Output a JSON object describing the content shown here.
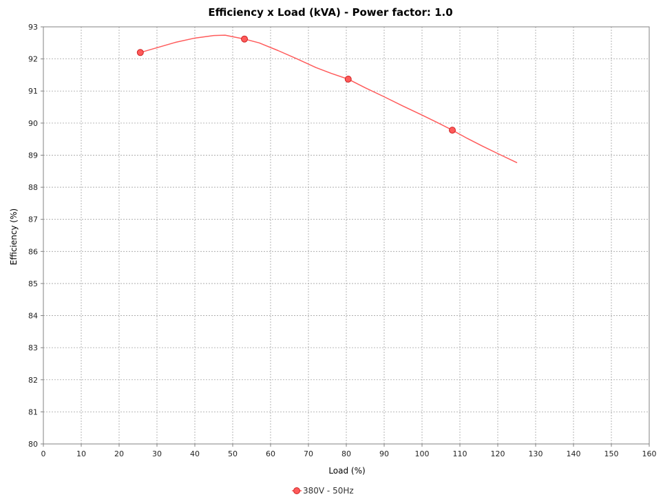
{
  "chart_data": {
    "type": "line",
    "title": "Efficiency x Load (kVA) - Power factor: 1.0",
    "xlabel": "Load (%)",
    "ylabel": "Efficiency (%)",
    "xlim": [
      0,
      160
    ],
    "ylim": [
      80,
      93
    ],
    "x_ticks": [
      0,
      10,
      20,
      30,
      40,
      50,
      60,
      70,
      80,
      90,
      100,
      110,
      120,
      130,
      140,
      150,
      160
    ],
    "y_ticks": [
      80,
      81,
      82,
      83,
      84,
      85,
      86,
      87,
      88,
      89,
      90,
      91,
      92,
      93
    ],
    "grid": true,
    "legend_position": "bottom-center",
    "series": [
      {
        "name": "380V - 50Hz",
        "color": "#ff5a5a",
        "marker": "circle",
        "points": [
          {
            "x": 25.6,
            "y": 92.2
          },
          {
            "x": 53.1,
            "y": 92.62
          },
          {
            "x": 80.5,
            "y": 91.37
          },
          {
            "x": 108.0,
            "y": 89.78
          }
        ],
        "curve": [
          {
            "x": 25.6,
            "y": 92.2
          },
          {
            "x": 30.0,
            "y": 92.35
          },
          {
            "x": 35.0,
            "y": 92.52
          },
          {
            "x": 40.0,
            "y": 92.65
          },
          {
            "x": 45.0,
            "y": 92.73
          },
          {
            "x": 48.0,
            "y": 92.74
          },
          {
            "x": 53.1,
            "y": 92.62
          },
          {
            "x": 57.0,
            "y": 92.5
          },
          {
            "x": 62.0,
            "y": 92.26
          },
          {
            "x": 67.0,
            "y": 92.0
          },
          {
            "x": 72.0,
            "y": 91.73
          },
          {
            "x": 76.0,
            "y": 91.55
          },
          {
            "x": 80.5,
            "y": 91.37
          },
          {
            "x": 85.0,
            "y": 91.1
          },
          {
            "x": 90.0,
            "y": 90.82
          },
          {
            "x": 95.0,
            "y": 90.53
          },
          {
            "x": 100.0,
            "y": 90.25
          },
          {
            "x": 104.0,
            "y": 90.02
          },
          {
            "x": 108.0,
            "y": 89.78
          },
          {
            "x": 112.0,
            "y": 89.52
          },
          {
            "x": 116.0,
            "y": 89.28
          },
          {
            "x": 120.0,
            "y": 89.05
          },
          {
            "x": 125.0,
            "y": 88.77
          }
        ]
      }
    ]
  }
}
